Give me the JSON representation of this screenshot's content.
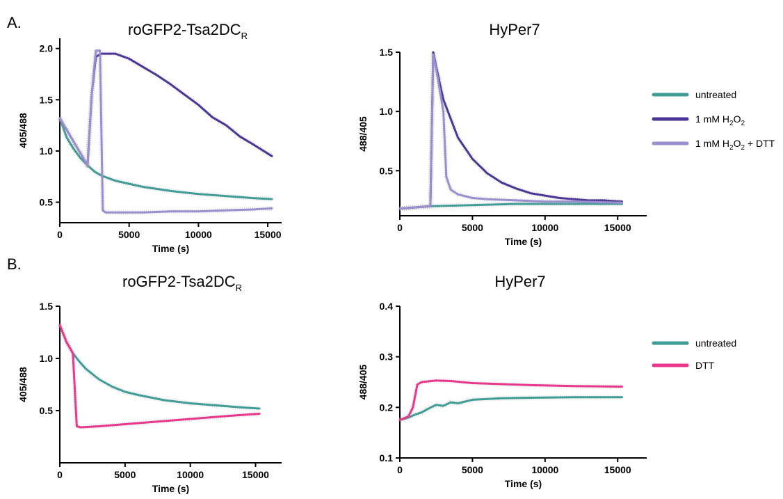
{
  "panel_labels": {
    "a": "A.",
    "b": "B."
  },
  "colors": {
    "untreated": "#3f9c97",
    "h2o2": "#4b3596",
    "h2o2_dtt": "#9a8ed0",
    "dtt": "#e8378c",
    "errorbar": "#9a9a9a"
  },
  "legend_a": {
    "untreated": "untreated",
    "h2o2": {
      "prefix": "1 mM H",
      "sub1": "2",
      "mid": "O",
      "sub2": "2"
    },
    "h2o2_dtt": {
      "prefix": "1 mM H",
      "sub1": "2",
      "mid": "O",
      "sub2": "2",
      "suffix": " + DTT"
    }
  },
  "legend_b": {
    "untreated": "untreated",
    "dtt": "DTT"
  },
  "chart_data": [
    {
      "id": "a1",
      "type": "line",
      "title": "roGFP2-Tsa2DC",
      "title_sub": "R",
      "xlabel": "Time (s)",
      "ylabel": "405/488",
      "xlim": [
        0,
        16000
      ],
      "ylim": [
        0.3,
        2.1
      ],
      "xticks": [
        0,
        5000,
        10000,
        15000
      ],
      "xticklabels": [
        "0",
        "5000",
        "10000",
        "15000"
      ],
      "yticks": [
        0.5,
        1.0,
        1.5,
        2.0
      ],
      "yticklabels": [
        "0.5",
        "1.0",
        "1.5",
        "2.0"
      ],
      "series": [
        {
          "key": "untreated",
          "x": [
            0,
            500,
            1000,
            1500,
            2000,
            2500,
            3000,
            4000,
            5000,
            6000,
            8000,
            10000,
            12000,
            14000,
            15300
          ],
          "y": [
            1.32,
            1.13,
            1.02,
            0.93,
            0.86,
            0.8,
            0.76,
            0.71,
            0.68,
            0.65,
            0.61,
            0.58,
            0.56,
            0.54,
            0.53
          ]
        },
        {
          "key": "h2o2",
          "x": [
            0,
            2000,
            2300,
            2600,
            3000,
            4000,
            5000,
            6000,
            7000,
            8000,
            9000,
            10000,
            11000,
            12000,
            13000,
            14000,
            15300
          ],
          "y": [
            1.32,
            0.86,
            1.55,
            1.92,
            1.95,
            1.95,
            1.9,
            1.82,
            1.74,
            1.65,
            1.55,
            1.45,
            1.33,
            1.25,
            1.14,
            1.06,
            0.95
          ]
        },
        {
          "key": "h2o2_dtt",
          "x": [
            0,
            2000,
            2300,
            2600,
            2900,
            3100,
            3300,
            4000,
            6000,
            8000,
            10000,
            12000,
            14000,
            15300
          ],
          "y": [
            1.32,
            0.86,
            1.55,
            1.98,
            1.98,
            0.42,
            0.4,
            0.4,
            0.4,
            0.41,
            0.41,
            0.42,
            0.43,
            0.44
          ]
        }
      ]
    },
    {
      "id": "a2",
      "type": "line",
      "title": "HyPer7",
      "title_sub": "",
      "xlabel": "Time (s)",
      "ylabel": "488/405",
      "xlim": [
        0,
        17000
      ],
      "ylim": [
        0.12,
        1.5
      ],
      "xticks": [
        0,
        5000,
        10000,
        15000
      ],
      "xticklabels": [
        "0",
        "5000",
        "10000",
        "15000"
      ],
      "yticks": [
        0.5,
        1.0,
        1.5
      ],
      "yticklabels": [
        "0.5",
        "1.0",
        "1.5"
      ],
      "series": [
        {
          "key": "untreated",
          "x": [
            0,
            2000,
            5000,
            8000,
            12000,
            15300
          ],
          "y": [
            0.18,
            0.2,
            0.21,
            0.22,
            0.22,
            0.22
          ]
        },
        {
          "key": "h2o2",
          "x": [
            0,
            2100,
            2300,
            2500,
            3000,
            4000,
            5000,
            6000,
            7000,
            8000,
            9000,
            10000,
            11000,
            12000,
            13000,
            14000,
            15300
          ],
          "y": [
            0.18,
            0.2,
            1.5,
            1.38,
            1.1,
            0.78,
            0.6,
            0.48,
            0.4,
            0.35,
            0.31,
            0.29,
            0.27,
            0.26,
            0.25,
            0.25,
            0.24
          ]
        },
        {
          "key": "h2o2_dtt",
          "x": [
            0,
            2100,
            2300,
            2500,
            3000,
            3200,
            3500,
            4000,
            5000,
            6000,
            8000,
            10000,
            12000,
            15300
          ],
          "y": [
            0.18,
            0.2,
            1.48,
            1.36,
            1.0,
            0.45,
            0.34,
            0.3,
            0.27,
            0.26,
            0.25,
            0.24,
            0.24,
            0.23
          ]
        }
      ]
    },
    {
      "id": "b1",
      "type": "line",
      "title": "roGFP2-Tsa2DC",
      "title_sub": "R",
      "xlabel": "Time (s)",
      "ylabel": "405/488",
      "xlim": [
        0,
        17000
      ],
      "ylim": [
        0,
        1.5
      ],
      "xticks": [
        0,
        5000,
        10000,
        15000
      ],
      "xticklabels": [
        "0",
        "5000",
        "10000",
        "15000"
      ],
      "yticks": [
        0.5,
        1.0,
        1.5
      ],
      "yticklabels": [
        "0.5",
        "1.0",
        "1.5"
      ],
      "series": [
        {
          "key": "untreated",
          "x": [
            0,
            500,
            1000,
            1500,
            2000,
            3000,
            4000,
            5000,
            6000,
            8000,
            10000,
            12000,
            14000,
            15300
          ],
          "y": [
            1.32,
            1.16,
            1.05,
            0.97,
            0.9,
            0.8,
            0.73,
            0.68,
            0.65,
            0.6,
            0.57,
            0.55,
            0.53,
            0.52
          ]
        },
        {
          "key": "dtt",
          "x": [
            0,
            500,
            1000,
            1300,
            1600,
            3000,
            5000,
            7000,
            9000,
            11000,
            13000,
            15300
          ],
          "y": [
            1.32,
            1.16,
            1.05,
            0.35,
            0.34,
            0.35,
            0.37,
            0.39,
            0.41,
            0.43,
            0.45,
            0.47
          ]
        }
      ]
    },
    {
      "id": "b2",
      "type": "line",
      "title": "HyPer7",
      "title_sub": "",
      "xlabel": "Time (s)",
      "ylabel": "488/405",
      "xlim": [
        0,
        17000
      ],
      "ylim": [
        0.1,
        0.4
      ],
      "xticks": [
        0,
        5000,
        10000,
        15000
      ],
      "xticklabels": [
        "0",
        "5000",
        "10000",
        "15000"
      ],
      "yticks": [
        0.1,
        0.2,
        0.3,
        0.4
      ],
      "yticklabels": [
        "0.1",
        "0.2",
        "0.3",
        "0.4"
      ],
      "series": [
        {
          "key": "untreated",
          "x": [
            0,
            600,
            1000,
            1500,
            2000,
            2500,
            3000,
            3500,
            4000,
            5000,
            7000,
            9000,
            12000,
            15300
          ],
          "y": [
            0.175,
            0.18,
            0.185,
            0.19,
            0.198,
            0.205,
            0.203,
            0.21,
            0.208,
            0.215,
            0.218,
            0.219,
            0.22,
            0.22
          ]
        },
        {
          "key": "dtt",
          "x": [
            0,
            600,
            900,
            1200,
            1500,
            2500,
            3500,
            5000,
            7000,
            9000,
            12000,
            15300
          ],
          "y": [
            0.175,
            0.182,
            0.2,
            0.245,
            0.25,
            0.253,
            0.252,
            0.248,
            0.246,
            0.244,
            0.242,
            0.241
          ]
        }
      ]
    }
  ]
}
